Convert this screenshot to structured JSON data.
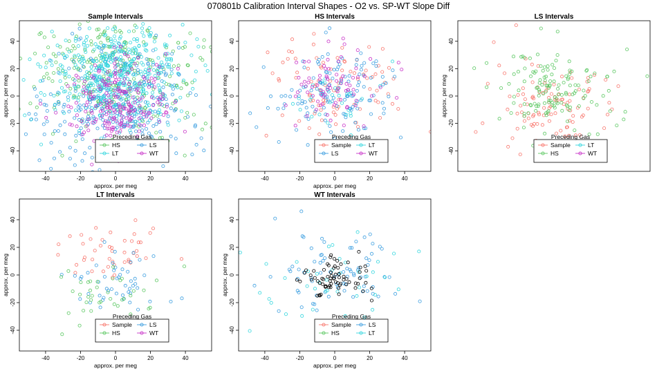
{
  "figure_title": "070801b   Calibration Interval Shapes - O2 vs. SP-WT Slope Diff",
  "colors": {
    "Sample": "#f8766d",
    "HS": "#5cc863",
    "LS": "#3b9ee0",
    "LT": "#33d6de",
    "WT": "#c832c8",
    "black": "#000000"
  },
  "chart_data": [
    {
      "type": "scatter",
      "title": "Sample Intervals",
      "xlabel": "approx. per meg",
      "ylabel": "approx. per meg",
      "xlim": [
        -55,
        55
      ],
      "ylim": [
        -55,
        55
      ],
      "xticks": [
        -40,
        -20,
        0,
        20,
        40
      ],
      "yticks": [
        -40,
        -20,
        0,
        20,
        40
      ],
      "legend": {
        "title": "Preceding Gas",
        "position": "bottom-right",
        "entries": [
          "HS",
          "LS",
          "LT",
          "WT"
        ]
      },
      "series": [
        {
          "name": "HS",
          "n": 300,
          "sx": 26,
          "sy": 24,
          "mx": 0,
          "my": 18
        },
        {
          "name": "LS",
          "n": 380,
          "sx": 22,
          "sy": 24,
          "mx": 0,
          "my": -8
        },
        {
          "name": "LT",
          "n": 420,
          "sx": 20,
          "sy": 18,
          "mx": 0,
          "my": 18
        },
        {
          "name": "WT",
          "n": 220,
          "sx": 14,
          "sy": 16,
          "mx": 0,
          "my": -5
        }
      ]
    },
    {
      "type": "scatter",
      "title": "HS Intervals",
      "xlabel": "approx. per meg",
      "ylabel": "approx. per meg",
      "xlim": [
        -55,
        55
      ],
      "ylim": [
        -55,
        55
      ],
      "xticks": [
        -40,
        -20,
        0,
        20,
        40
      ],
      "yticks": [
        -40,
        -20,
        0,
        20,
        40
      ],
      "legend": {
        "title": "Preceding Gas",
        "position": "bottom-right",
        "entries": [
          "Sample",
          "LT",
          "LS",
          "WT"
        ]
      },
      "series": [
        {
          "name": "Sample",
          "n": 90,
          "sx": 20,
          "sy": 20,
          "mx": 0,
          "my": 5
        },
        {
          "name": "LS",
          "n": 130,
          "sx": 17,
          "sy": 16,
          "mx": 0,
          "my": 3
        },
        {
          "name": "LT",
          "n": 35,
          "sx": 12,
          "sy": 12,
          "mx": 0,
          "my": 0
        },
        {
          "name": "WT",
          "n": 80,
          "sx": 13,
          "sy": 14,
          "mx": 0,
          "my": 8
        }
      ]
    },
    {
      "type": "scatter",
      "title": "LS Intervals",
      "xlabel": "",
      "ylabel": "approx. per meg",
      "xlim": [
        -55,
        55
      ],
      "ylim": [
        -55,
        55
      ],
      "xticks": [
        -40,
        -20,
        0,
        20,
        40
      ],
      "yticks": [
        -40,
        -20,
        0,
        20,
        40
      ],
      "legend": {
        "title": "Preceding Gas",
        "position": "bottom-right",
        "entries": [
          "Sample",
          "LT",
          "HS",
          "WT"
        ]
      },
      "series": [
        {
          "name": "Sample",
          "n": 110,
          "sx": 18,
          "sy": 17,
          "mx": 0,
          "my": -8
        },
        {
          "name": "HS",
          "n": 140,
          "sx": 17,
          "sy": 15,
          "mx": 0,
          "my": 4
        }
      ]
    },
    {
      "type": "scatter",
      "title": "LT Intervals",
      "xlabel": "approx. per meg",
      "ylabel": "approx. per meg",
      "xlim": [
        -55,
        55
      ],
      "ylim": [
        -55,
        55
      ],
      "xticks": [
        -40,
        -20,
        0,
        20,
        40
      ],
      "yticks": [
        -40,
        -20,
        0,
        20,
        40
      ],
      "legend": {
        "title": "Preceding Gas",
        "position": "bottom-right",
        "entries": [
          "Sample",
          "LS",
          "HS",
          "WT"
        ]
      },
      "series": [
        {
          "name": "Sample",
          "n": 45,
          "sx": 15,
          "sy": 10,
          "mx": 0,
          "my": 18
        },
        {
          "name": "LS",
          "n": 50,
          "sx": 14,
          "sy": 12,
          "mx": 2,
          "my": -5
        },
        {
          "name": "HS",
          "n": 45,
          "sx": 15,
          "sy": 15,
          "mx": -5,
          "my": -15
        }
      ]
    },
    {
      "type": "scatter",
      "title": "WT Intervals",
      "xlabel": "approx. per meg",
      "ylabel": "approx. per meg",
      "xlim": [
        -55,
        55
      ],
      "ylim": [
        -55,
        55
      ],
      "xticks": [
        -40,
        -20,
        0,
        20,
        40
      ],
      "yticks": [
        -40,
        -20,
        0,
        20,
        40
      ],
      "legend": {
        "title": "Preceding Gas",
        "position": "bottom-right",
        "entries": [
          "Sample",
          "LS",
          "HS",
          "LT"
        ]
      },
      "series": [
        {
          "name": "LS",
          "n": 80,
          "sx": 18,
          "sy": 17,
          "mx": 0,
          "my": 0
        },
        {
          "name": "LT",
          "n": 45,
          "sx": 22,
          "sy": 20,
          "mx": 0,
          "my": -5
        },
        {
          "name": "black",
          "n": 70,
          "sx": 10,
          "sy": 7,
          "mx": 0,
          "my": -3
        }
      ]
    }
  ]
}
